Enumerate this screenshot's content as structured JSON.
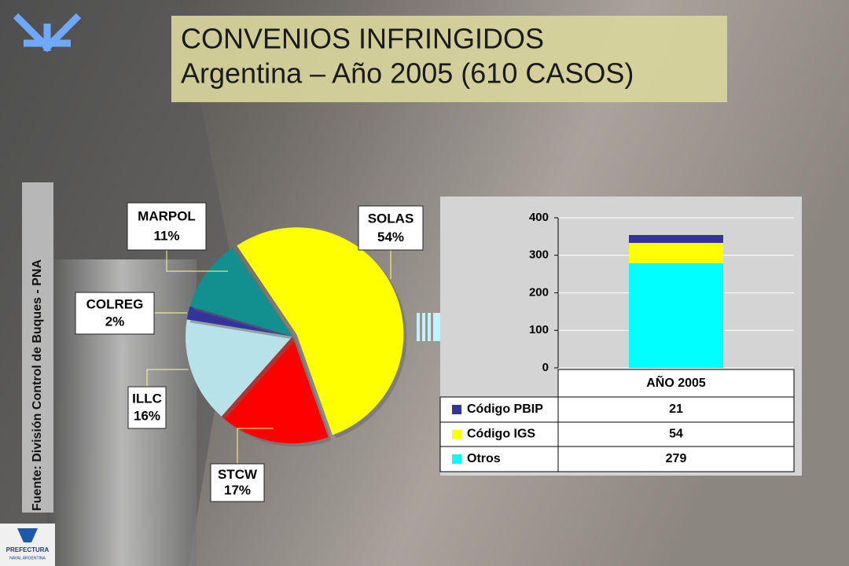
{
  "header": {
    "title": "CONVENIOS INFRINGIDOS",
    "subtitle": "Argentina – Año 2005 (610 CASOS)"
  },
  "source": "Fuente: División Control de Buques - PNA",
  "logo": {
    "line1": "PREFECTURA",
    "line2": "NAVAL ARGENTINA"
  },
  "chart_data": [
    {
      "type": "pie",
      "categories": [
        "SOLAS",
        "STCW",
        "ILLC",
        "COLREG",
        "MARPOL"
      ],
      "values": [
        54,
        17,
        16,
        2,
        11
      ],
      "value_labels": [
        "54%",
        "17%",
        "16%",
        "2%",
        "11%"
      ],
      "colors": [
        "#ffff00",
        "#ff0000",
        "#b8e2ea",
        "#333399",
        "#129090"
      ]
    },
    {
      "type": "bar",
      "stacked": true,
      "categories": [
        "AÑO 2005"
      ],
      "series": [
        {
          "name": "Código PBIP",
          "color": "#333399",
          "values": [
            21
          ]
        },
        {
          "name": "Código IGS",
          "color": "#ffff00",
          "values": [
            54
          ]
        },
        {
          "name": "Otros",
          "color": "#00ffff",
          "values": [
            279
          ]
        }
      ],
      "ylim": [
        0,
        400
      ],
      "yticks": [
        0,
        100,
        200,
        300,
        400
      ],
      "grid": true
    }
  ]
}
